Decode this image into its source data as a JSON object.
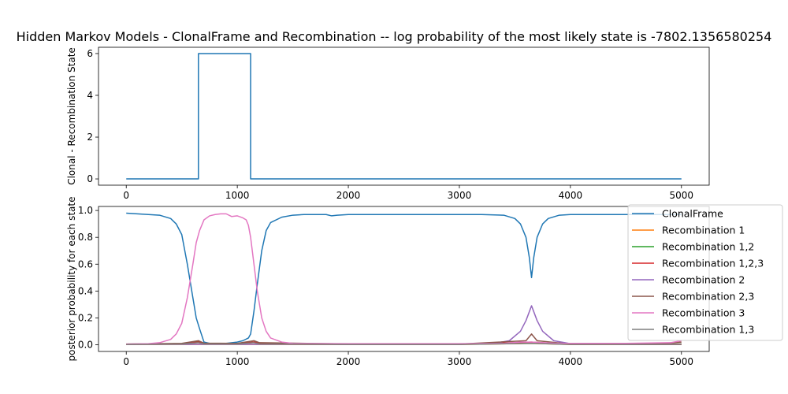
{
  "title": "Hidden Markov Models - ClonalFrame and Recombination -- log probability of the most likely state is  -7802.1356580254",
  "chart_data": [
    {
      "type": "line",
      "ylabel": "Clonal - Recombination State",
      "xlabel": "",
      "xlim": [
        -250,
        5250
      ],
      "ylim": [
        -0.3,
        6.3
      ],
      "xticks": [
        0,
        1000,
        2000,
        3000,
        4000,
        5000
      ],
      "yticks": [
        0,
        2,
        4,
        6
      ],
      "grid": false,
      "series": [
        {
          "color": "#1f77b4",
          "step": true,
          "x": [
            0,
            650,
            650,
            1120,
            1120,
            5000
          ],
          "y": [
            0,
            0,
            6,
            6,
            0,
            0
          ]
        }
      ]
    },
    {
      "type": "line",
      "ylabel": "posterior probability for each state",
      "xlabel": "",
      "xlim": [
        -250,
        5250
      ],
      "ylim": [
        -0.05,
        1.03
      ],
      "xticks": [
        0,
        1000,
        2000,
        3000,
        4000,
        5000
      ],
      "yticks": [
        0.0,
        0.2,
        0.4,
        0.6,
        0.8,
        1.0
      ],
      "grid": false,
      "legend_position": "right, outside axes",
      "series": [
        {
          "name": "ClonalFrame",
          "color": "#1f77b4",
          "x": [
            0,
            100,
            200,
            300,
            400,
            450,
            500,
            550,
            600,
            630,
            660,
            700,
            750,
            800,
            900,
            1000,
            1050,
            1100,
            1120,
            1150,
            1180,
            1220,
            1260,
            1300,
            1400,
            1500,
            1600,
            1700,
            1800,
            1850,
            1900,
            2000,
            2500,
            3000,
            3200,
            3400,
            3500,
            3550,
            3600,
            3630,
            3650,
            3670,
            3700,
            3750,
            3800,
            3900,
            4000,
            4500,
            5000
          ],
          "y": [
            0.98,
            0.975,
            0.97,
            0.965,
            0.94,
            0.9,
            0.82,
            0.6,
            0.35,
            0.2,
            0.12,
            0.02,
            0.01,
            0.01,
            0.01,
            0.02,
            0.03,
            0.05,
            0.08,
            0.25,
            0.45,
            0.7,
            0.85,
            0.91,
            0.95,
            0.965,
            0.97,
            0.97,
            0.97,
            0.96,
            0.965,
            0.97,
            0.97,
            0.97,
            0.97,
            0.965,
            0.94,
            0.9,
            0.8,
            0.65,
            0.5,
            0.65,
            0.8,
            0.9,
            0.94,
            0.965,
            0.97,
            0.97,
            0.97
          ]
        },
        {
          "name": "Recombination 1",
          "color": "#ff7f0e",
          "x": [
            0,
            1000,
            2000,
            3000,
            3650,
            4000,
            5000
          ],
          "y": [
            0.002,
            0.003,
            0.002,
            0.002,
            0.01,
            0.002,
            0.002
          ]
        },
        {
          "name": "Recombination 1,2",
          "color": "#2ca02c",
          "x": [
            0,
            500,
            650,
            700,
            1000,
            1150,
            1200,
            2000,
            3000,
            3650,
            4000,
            5000
          ],
          "y": [
            0.004,
            0.008,
            0.025,
            0.01,
            0.008,
            0.02,
            0.01,
            0.004,
            0.004,
            0.015,
            0.004,
            0.006
          ]
        },
        {
          "name": "Recombination 1,2,3",
          "color": "#d62728",
          "x": [
            0,
            500,
            650,
            700,
            1000,
            1150,
            1200,
            2000,
            3000,
            3650,
            4000,
            5000
          ],
          "y": [
            0.003,
            0.008,
            0.02,
            0.01,
            0.006,
            0.02,
            0.01,
            0.003,
            0.003,
            0.02,
            0.003,
            0.005
          ]
        },
        {
          "name": "Recombination 2",
          "color": "#9467bd",
          "x": [
            0,
            2000,
            3000,
            3300,
            3450,
            3550,
            3600,
            3650,
            3700,
            3750,
            3850,
            4000,
            4500,
            5000
          ],
          "y": [
            0.003,
            0.003,
            0.003,
            0.008,
            0.03,
            0.1,
            0.18,
            0.29,
            0.18,
            0.1,
            0.03,
            0.008,
            0.003,
            0.003
          ]
        },
        {
          "name": "Recombination 2,3",
          "color": "#8c564b",
          "x": [
            0,
            500,
            650,
            700,
            1000,
            1150,
            1200,
            2000,
            3000,
            3600,
            3650,
            3700,
            4000,
            4800,
            5000
          ],
          "y": [
            0.005,
            0.01,
            0.03,
            0.012,
            0.01,
            0.03,
            0.015,
            0.006,
            0.005,
            0.03,
            0.08,
            0.03,
            0.005,
            0.008,
            0.02
          ]
        },
        {
          "name": "Recombination 3",
          "color": "#e377c2",
          "x": [
            0,
            200,
            300,
            400,
            450,
            500,
            550,
            600,
            630,
            660,
            700,
            750,
            800,
            850,
            900,
            950,
            1000,
            1050,
            1080,
            1100,
            1120,
            1150,
            1180,
            1220,
            1260,
            1300,
            1400,
            1500,
            2000,
            3000,
            3400,
            3550,
            3650,
            3750,
            3900,
            4500,
            4900,
            5000
          ],
          "y": [
            0.005,
            0.008,
            0.015,
            0.04,
            0.08,
            0.16,
            0.35,
            0.6,
            0.76,
            0.85,
            0.93,
            0.96,
            0.97,
            0.975,
            0.975,
            0.955,
            0.96,
            0.945,
            0.93,
            0.89,
            0.8,
            0.6,
            0.4,
            0.2,
            0.1,
            0.05,
            0.02,
            0.01,
            0.008,
            0.008,
            0.01,
            0.02,
            0.02,
            0.015,
            0.01,
            0.01,
            0.015,
            0.03
          ]
        },
        {
          "name": "Recombination 1,3",
          "color": "#7f7f7f",
          "x": [
            0,
            500,
            650,
            700,
            1000,
            1150,
            1200,
            2000,
            3000,
            3650,
            4000,
            5000
          ],
          "y": [
            0.002,
            0.005,
            0.015,
            0.006,
            0.005,
            0.015,
            0.006,
            0.002,
            0.002,
            0.01,
            0.002,
            0.003
          ]
        }
      ]
    }
  ]
}
